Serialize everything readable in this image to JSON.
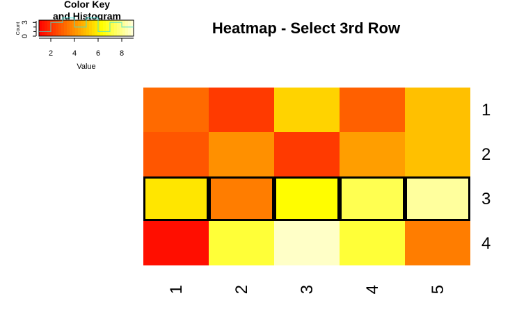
{
  "chart_data": {
    "type": "heatmap",
    "title": "Heatmap - Select 3rd Row",
    "row_labels": [
      "1",
      "2",
      "3",
      "4"
    ],
    "col_labels": [
      "1",
      "2",
      "3",
      "4",
      "5"
    ],
    "values": [
      [
        3.2,
        2.2,
        5.4,
        3.0,
        5.0
      ],
      [
        2.8,
        4.0,
        2.2,
        4.3,
        5.0
      ],
      [
        5.8,
        3.6,
        6.3,
        7.3,
        8.2
      ],
      [
        1.3,
        7.0,
        8.7,
        7.0,
        3.6
      ]
    ],
    "highlighted_row": "3",
    "color_scale": [
      "#ff0000",
      "#ff8000",
      "#ffff00",
      "#ffffe0"
    ],
    "color_key": {
      "title_line1": "Color Key",
      "title_line2": "and Histogram",
      "xlabel": "Value",
      "ylabel": "Count",
      "range": [
        1,
        9
      ],
      "x_ticks": [
        "2",
        "4",
        "6",
        "8"
      ],
      "y_ticks": [
        "0",
        "3"
      ]
    }
  }
}
